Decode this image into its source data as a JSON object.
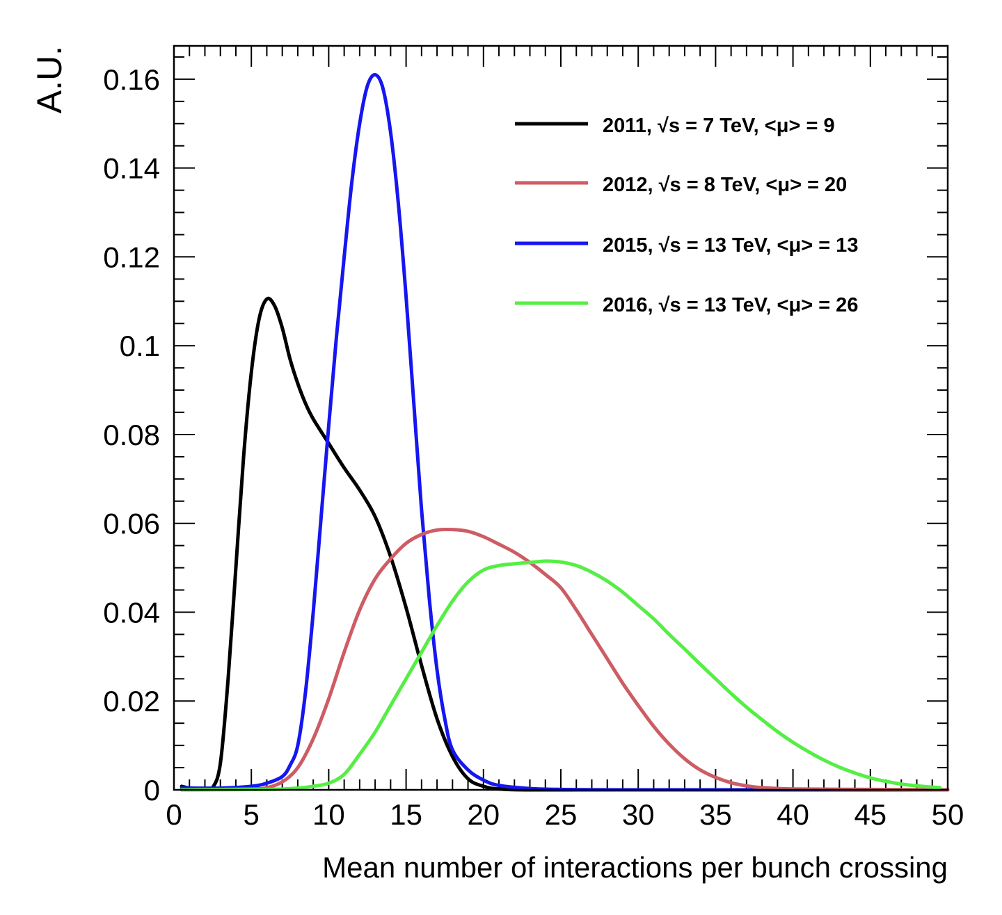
{
  "chart_data": {
    "type": "line",
    "title": "",
    "xlabel": "Mean number of interactions per bunch crossing",
    "ylabel": "A.U.",
    "xlim": [
      0,
      50
    ],
    "ylim": [
      0,
      0.1675
    ],
    "x_ticks": [
      "0",
      "5",
      "10",
      "15",
      "20",
      "25",
      "30",
      "35",
      "40",
      "45",
      "50"
    ],
    "y_ticks": [
      "0",
      "0.02",
      "0.04",
      "0.06",
      "0.08",
      "0.1",
      "0.12",
      "0.14",
      "0.16"
    ],
    "grid": false,
    "legend_position": "top-right",
    "series": [
      {
        "name": "2011, √s = 7 TeV, <μ> = 9",
        "color": "#000000",
        "points": [
          [
            0.5,
            0.0008
          ],
          [
            1,
            0.0004
          ],
          [
            2,
            0.0003
          ],
          [
            2.5,
            0.0005
          ],
          [
            3,
            0.006
          ],
          [
            3.5,
            0.025
          ],
          [
            4,
            0.05
          ],
          [
            4.5,
            0.075
          ],
          [
            5,
            0.094
          ],
          [
            5.5,
            0.106
          ],
          [
            6,
            0.1105
          ],
          [
            6.5,
            0.109
          ],
          [
            7,
            0.104
          ],
          [
            7.5,
            0.097
          ],
          [
            8,
            0.0915
          ],
          [
            8.5,
            0.087
          ],
          [
            9,
            0.0835
          ],
          [
            10,
            0.078
          ],
          [
            11,
            0.0725
          ],
          [
            12,
            0.0675
          ],
          [
            13,
            0.0615
          ],
          [
            14,
            0.0525
          ],
          [
            15,
            0.041
          ],
          [
            16,
            0.028
          ],
          [
            17,
            0.016
          ],
          [
            18,
            0.0075
          ],
          [
            19,
            0.0025
          ],
          [
            20,
            0.0008
          ],
          [
            21,
            0.0002
          ],
          [
            23,
            0.0
          ],
          [
            30,
            0.0
          ],
          [
            50,
            0.0
          ]
        ]
      },
      {
        "name": "2012, √s = 8 TeV, <μ> = 20",
        "color": "#cd5c64",
        "points": [
          [
            0.5,
            0.0
          ],
          [
            5,
            0.0002
          ],
          [
            6,
            0.0005
          ],
          [
            7,
            0.0018
          ],
          [
            8,
            0.005
          ],
          [
            9,
            0.0115
          ],
          [
            10,
            0.0205
          ],
          [
            11,
            0.031
          ],
          [
            12,
            0.0405
          ],
          [
            13,
            0.0475
          ],
          [
            14,
            0.052
          ],
          [
            15,
            0.0555
          ],
          [
            16,
            0.0575
          ],
          [
            17,
            0.0585
          ],
          [
            18,
            0.0586
          ],
          [
            19,
            0.0582
          ],
          [
            20,
            0.057
          ],
          [
            21,
            0.0553
          ],
          [
            22,
            0.0535
          ],
          [
            23,
            0.0512
          ],
          [
            24,
            0.0485
          ],
          [
            25,
            0.0455
          ],
          [
            26,
            0.0405
          ],
          [
            27,
            0.035
          ],
          [
            28,
            0.0295
          ],
          [
            29,
            0.024
          ],
          [
            30,
            0.019
          ],
          [
            31,
            0.0143
          ],
          [
            32,
            0.0103
          ],
          [
            33,
            0.007
          ],
          [
            34,
            0.0045
          ],
          [
            35,
            0.0028
          ],
          [
            36,
            0.0016
          ],
          [
            37,
            0.0009
          ],
          [
            38,
            0.0005
          ],
          [
            40,
            0.0002
          ],
          [
            45,
            0.0001
          ],
          [
            50,
            0.0
          ]
        ]
      },
      {
        "name": "2015, √s = 13 TeV, <μ> = 13",
        "color": "#1616f0",
        "points": [
          [
            0.5,
            0.0004
          ],
          [
            3,
            0.0004
          ],
          [
            5,
            0.0008
          ],
          [
            6,
            0.0015
          ],
          [
            7,
            0.003
          ],
          [
            7.5,
            0.0055
          ],
          [
            8,
            0.01
          ],
          [
            8.5,
            0.022
          ],
          [
            9,
            0.04
          ],
          [
            9.5,
            0.061
          ],
          [
            10,
            0.082
          ],
          [
            10.5,
            0.102
          ],
          [
            11,
            0.12
          ],
          [
            11.5,
            0.137
          ],
          [
            12,
            0.15
          ],
          [
            12.5,
            0.1585
          ],
          [
            13,
            0.161
          ],
          [
            13.5,
            0.158
          ],
          [
            14,
            0.148
          ],
          [
            14.5,
            0.132
          ],
          [
            15,
            0.111
          ],
          [
            15.5,
            0.087
          ],
          [
            16,
            0.063
          ],
          [
            16.5,
            0.043
          ],
          [
            17,
            0.027
          ],
          [
            17.5,
            0.016
          ],
          [
            18,
            0.009
          ],
          [
            19,
            0.0045
          ],
          [
            20,
            0.0022
          ],
          [
            21,
            0.001
          ],
          [
            23,
            0.0003
          ],
          [
            25,
            0.0001
          ],
          [
            30,
            0.0
          ],
          [
            50,
            0.0
          ]
        ]
      },
      {
        "name": "2016, √s = 13 TeV, <μ> = 26",
        "color": "#55ee44",
        "points": [
          [
            0.5,
            0.0
          ],
          [
            6,
            0.0001
          ],
          [
            8,
            0.0004
          ],
          [
            9,
            0.0008
          ],
          [
            10,
            0.0015
          ],
          [
            11,
            0.0035
          ],
          [
            12,
            0.008
          ],
          [
            13,
            0.013
          ],
          [
            14,
            0.019
          ],
          [
            15,
            0.025
          ],
          [
            16,
            0.031
          ],
          [
            17,
            0.037
          ],
          [
            18,
            0.0425
          ],
          [
            19,
            0.0468
          ],
          [
            20,
            0.0495
          ],
          [
            21,
            0.0505
          ],
          [
            22,
            0.0509
          ],
          [
            23,
            0.0512
          ],
          [
            24,
            0.0515
          ],
          [
            25,
            0.0513
          ],
          [
            26,
            0.0505
          ],
          [
            27,
            0.049
          ],
          [
            28,
            0.047
          ],
          [
            29,
            0.0445
          ],
          [
            30,
            0.0415
          ],
          [
            31,
            0.0385
          ],
          [
            32,
            0.035
          ],
          [
            33,
            0.0317
          ],
          [
            34,
            0.0283
          ],
          [
            35,
            0.025
          ],
          [
            36,
            0.0217
          ],
          [
            37,
            0.0186
          ],
          [
            38,
            0.0158
          ],
          [
            39,
            0.0131
          ],
          [
            40,
            0.0107
          ],
          [
            41,
            0.0086
          ],
          [
            42,
            0.0067
          ],
          [
            43,
            0.0051
          ],
          [
            44,
            0.0038
          ],
          [
            45,
            0.0027
          ],
          [
            46,
            0.0019
          ],
          [
            47,
            0.0013
          ],
          [
            48,
            0.0009
          ],
          [
            49,
            0.0006
          ],
          [
            49.5,
            0.0005
          ]
        ]
      }
    ]
  }
}
